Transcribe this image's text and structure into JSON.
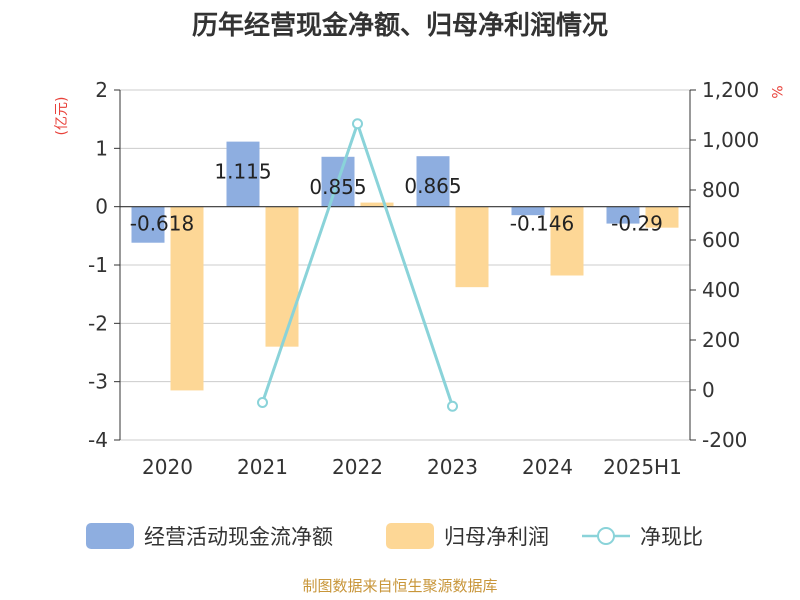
{
  "chart_data": {
    "type": "bar",
    "title": "历年经营现金净额、归母净利润情况",
    "left_unit": "(亿元)",
    "right_unit": "%",
    "categories": [
      "2020",
      "2021",
      "2022",
      "2023",
      "2024",
      "2025H1"
    ],
    "ylim_left": [
      -4,
      2
    ],
    "left_ticks": [
      "2",
      "1",
      "0",
      "-1",
      "-2",
      "-3",
      "-4"
    ],
    "ylim_right": [
      -200,
      1200
    ],
    "right_ticks": [
      "1,200",
      "1,000",
      "800",
      "600",
      "400",
      "200",
      "0",
      "-200"
    ],
    "grid": true,
    "legend_position": "bottom",
    "series": [
      {
        "name": "经营活动现金流净额",
        "kind": "bar",
        "axis": "left",
        "color": "#8eaee0",
        "values": [
          -0.618,
          1.115,
          0.855,
          0.865,
          -0.146,
          -0.29
        ],
        "labels": [
          "-0.618",
          "1.115",
          "0.855",
          "0.865",
          "-0.146",
          "-0.29"
        ]
      },
      {
        "name": "归母净利润",
        "kind": "bar",
        "axis": "left",
        "color": "#fdd796",
        "values": [
          -3.15,
          -2.4,
          0.07,
          -1.38,
          -1.18,
          -0.36
        ]
      },
      {
        "name": "净现比",
        "kind": "line",
        "axis": "right",
        "color": "#8ad3d9",
        "values": [
          null,
          -50,
          1065,
          -65,
          null,
          null
        ]
      }
    ],
    "source": "制图数据来自恒生聚源数据库"
  }
}
